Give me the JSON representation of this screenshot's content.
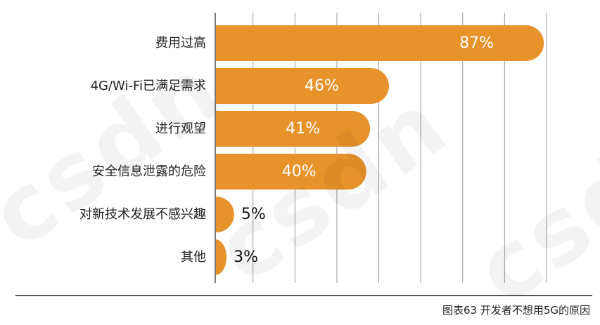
{
  "chart_data": {
    "type": "bar",
    "orientation": "horizontal",
    "categories": [
      "费用过高",
      "4G/Wi-Fi已满足需求",
      "进行观望",
      "安全信息泄露的危险",
      "对新技术发展不感兴趣",
      "其他"
    ],
    "values": [
      87,
      46,
      41,
      40,
      5,
      3
    ],
    "value_labels": [
      "87%",
      "46%",
      "41%",
      "40%",
      "5%",
      "3%"
    ],
    "xlim": [
      0,
      100
    ],
    "grid": true,
    "legend": "none",
    "bar_color": "#E8922B",
    "caption": "图表63  开发者不想用5G的原因"
  },
  "watermark": "csdn"
}
